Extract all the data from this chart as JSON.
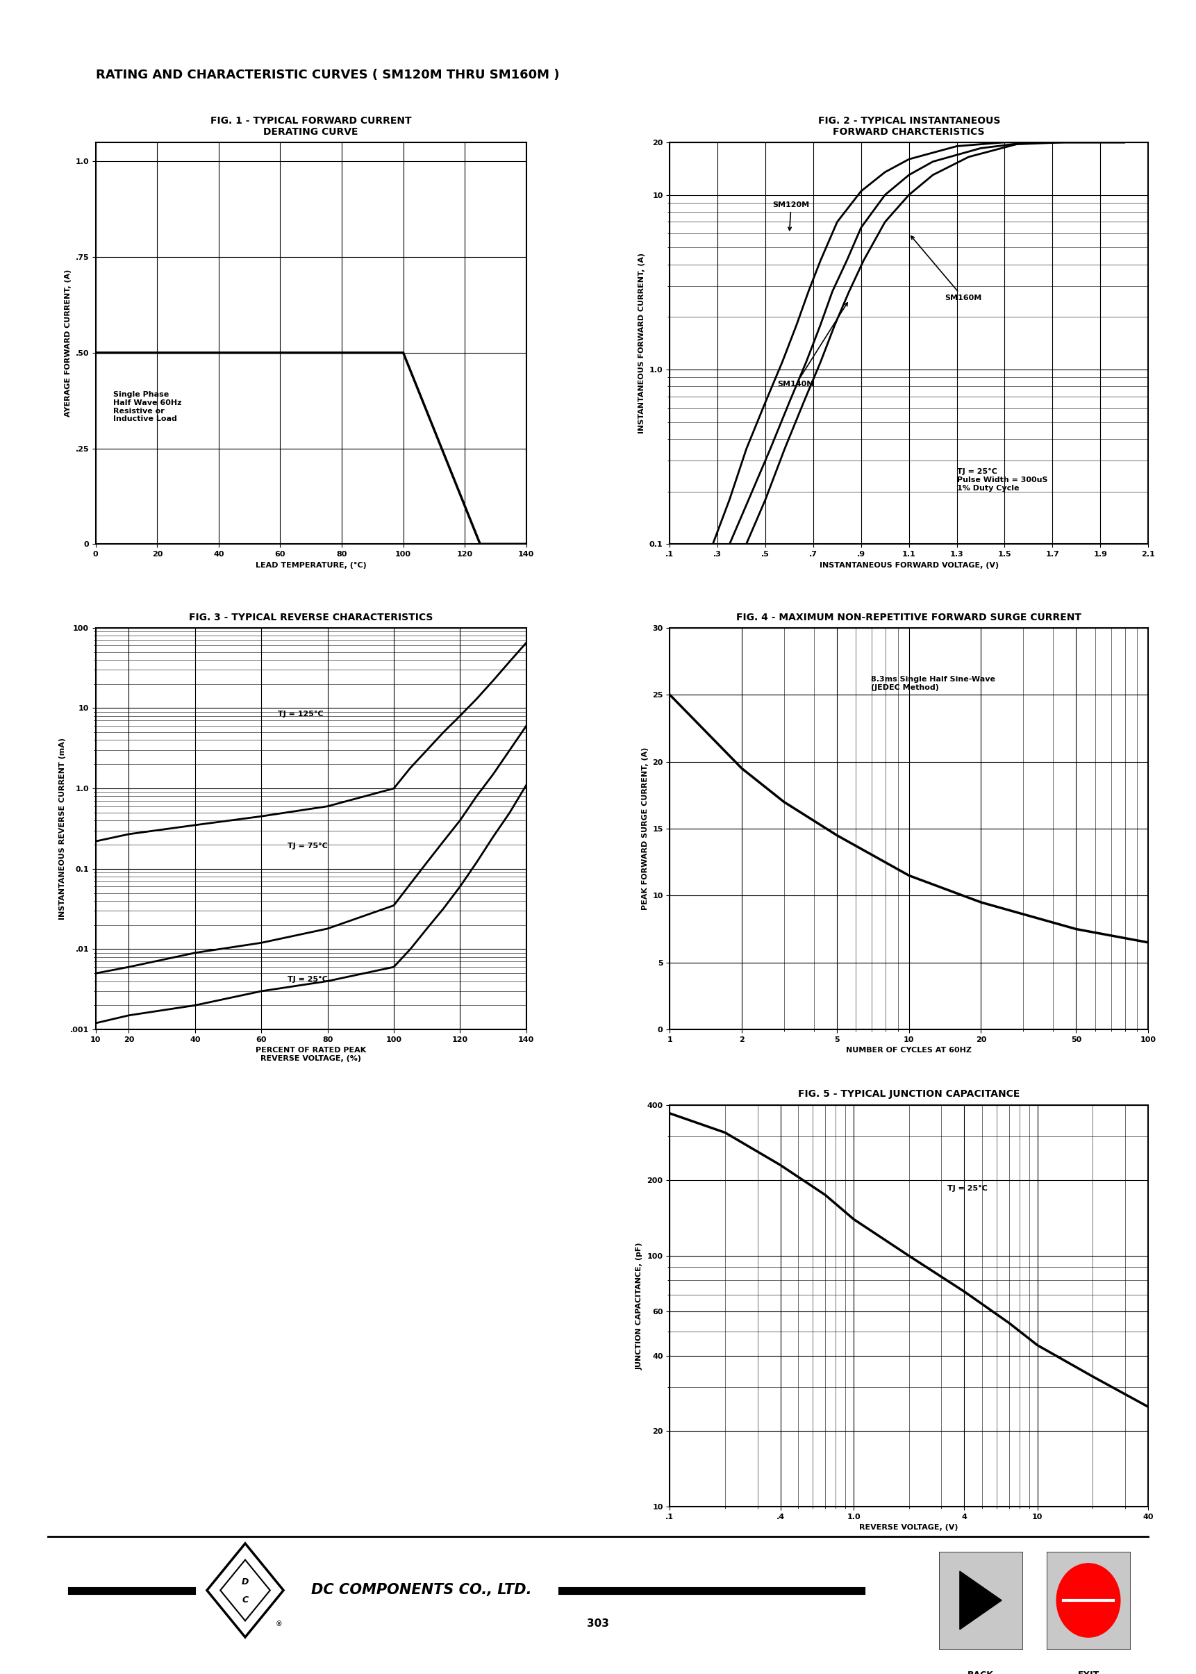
{
  "page_title": "RATING AND CHARACTERISTIC CURVES ( SM120M THRU SM160M )",
  "fig1_title": "FIG. 1 - TYPICAL FORWARD CURRENT\nDERATING CURVE",
  "fig1_xlabel": "LEAD TEMPERATURE, (°C)",
  "fig1_ylabel": "AYERAGE FORWARD CURRENT, (A)",
  "fig1_yticks": [
    0,
    0.25,
    0.5,
    0.75,
    1.0
  ],
  "fig1_ytick_labels": [
    "0",
    ".25",
    ".50",
    ".75",
    "1.0"
  ],
  "fig1_xticks": [
    0,
    20,
    40,
    60,
    80,
    100,
    120,
    140
  ],
  "fig1_xlim": [
    0,
    140
  ],
  "fig1_ylim": [
    0,
    1.05
  ],
  "fig1_curve_x": [
    0,
    100,
    125,
    140
  ],
  "fig1_curve_y": [
    0.5,
    0.5,
    0.0,
    0.0
  ],
  "fig1_annotation": "Single Phase\nHalf Wave 60Hz\nResistive or\nInductive Load",
  "fig2_title": "FIG. 2 - TYPICAL INSTANTANEOUS\nFORWARD CHARCTERISTICS",
  "fig2_xlabel": "INSTANTANEOUS FORWARD VOLTAGE, (V)",
  "fig2_ylabel": "INSTANTANEOUS FORWARD CURRENT, (A)",
  "fig2_xlim": [
    0.1,
    2.1
  ],
  "fig2_ylim": [
    0.1,
    20
  ],
  "fig2_xticks": [
    0.1,
    0.3,
    0.5,
    0.7,
    0.9,
    1.1,
    1.3,
    1.5,
    1.7,
    1.9,
    2.1
  ],
  "fig2_xtick_labels": [
    ".1",
    ".3",
    ".5",
    ".7",
    ".9",
    "1.1",
    "1.3",
    "1.5",
    "1.7",
    "1.9",
    "2.1"
  ],
  "fig2_ytick_labels": [
    "0.1",
    "1.0",
    "10",
    "20"
  ],
  "fig2_curve1_x": [
    0.28,
    0.35,
    0.42,
    0.5,
    0.57,
    0.63,
    0.68,
    0.73,
    0.8,
    0.9,
    1.0,
    1.1,
    1.3,
    1.5,
    1.7,
    2.0
  ],
  "fig2_curve1_y": [
    0.1,
    0.18,
    0.35,
    0.65,
    1.1,
    1.8,
    2.8,
    4.2,
    7.0,
    10.5,
    13.5,
    16.0,
    19.0,
    20.0,
    20.0,
    20.0
  ],
  "fig2_curve2_x": [
    0.35,
    0.43,
    0.52,
    0.6,
    0.67,
    0.73,
    0.78,
    0.84,
    0.9,
    1.0,
    1.1,
    1.2,
    1.4,
    1.6,
    1.8,
    2.0
  ],
  "fig2_curve2_y": [
    0.1,
    0.18,
    0.35,
    0.65,
    1.1,
    1.8,
    2.8,
    4.2,
    6.5,
    10.0,
    13.0,
    15.5,
    18.5,
    20.0,
    20.0,
    20.0
  ],
  "fig2_curve3_x": [
    0.42,
    0.5,
    0.58,
    0.66,
    0.73,
    0.79,
    0.85,
    0.91,
    1.0,
    1.1,
    1.2,
    1.35,
    1.55,
    1.75,
    2.0
  ],
  "fig2_curve3_y": [
    0.1,
    0.18,
    0.35,
    0.65,
    1.1,
    1.8,
    2.8,
    4.2,
    7.0,
    10.0,
    13.0,
    16.5,
    19.5,
    20.0,
    20.0
  ],
  "fig2_label1": "SM120M",
  "fig2_label2": "SM160M",
  "fig2_label3": "SM140M",
  "fig2_annotation": "TJ = 25°C\nPulse Width = 300uS\n1% Duty Cycle",
  "fig3_title": "FIG. 3 - TYPICAL REVERSE CHARACTERISTICS",
  "fig3_xlabel": "PERCENT OF RATED PEAK\nREVERSE VOLTAGE, (%)",
  "fig3_ylabel": "INSTANTANEOUS REVERSE CURRENT (mA)",
  "fig3_xlim": [
    10,
    140
  ],
  "fig3_ylim_log": [
    0.001,
    100
  ],
  "fig3_xticks": [
    10,
    20,
    40,
    60,
    80,
    100,
    120,
    140
  ],
  "fig3_yticks": [
    0.001,
    0.01,
    0.1,
    1.0,
    10,
    100
  ],
  "fig3_ytick_labels": [
    ".001",
    ".01",
    "0.1",
    "1.0",
    "10",
    "100"
  ],
  "fig3_curve1_x": [
    10,
    20,
    40,
    60,
    80,
    100,
    105,
    110,
    115,
    120,
    125,
    130,
    135,
    140
  ],
  "fig3_curve1_y": [
    0.22,
    0.27,
    0.35,
    0.45,
    0.6,
    1.0,
    1.8,
    3.0,
    5.0,
    8.0,
    13.0,
    22.0,
    38.0,
    65.0
  ],
  "fig3_curve2_x": [
    10,
    20,
    40,
    60,
    80,
    100,
    105,
    110,
    115,
    120,
    125,
    130,
    135,
    140
  ],
  "fig3_curve2_y": [
    0.005,
    0.006,
    0.009,
    0.012,
    0.018,
    0.035,
    0.065,
    0.12,
    0.22,
    0.4,
    0.8,
    1.5,
    3.0,
    6.0
  ],
  "fig3_curve3_x": [
    10,
    20,
    40,
    60,
    80,
    100,
    105,
    110,
    115,
    120,
    125,
    130,
    135,
    140
  ],
  "fig3_curve3_y": [
    0.0012,
    0.0015,
    0.002,
    0.003,
    0.004,
    0.006,
    0.01,
    0.018,
    0.032,
    0.06,
    0.12,
    0.25,
    0.5,
    1.1
  ],
  "fig3_label1": "TJ = 125°C",
  "fig3_label2": "TJ = 75°C",
  "fig3_label3": "TJ = 25°C",
  "fig4_title": "FIG. 4 - MAXIMUM NON-REPETITIVE FORWARD SURGE CURRENT",
  "fig4_xlabel": "NUMBER OF CYCLES AT 60HZ",
  "fig4_ylabel": "PEAK FORWARD SURGE CURRENT, (A)",
  "fig4_xlim": [
    1,
    100
  ],
  "fig4_ylim": [
    0,
    30
  ],
  "fig4_yticks": [
    0,
    5,
    10,
    15,
    20,
    25,
    30
  ],
  "fig4_xticks": [
    1,
    2,
    5,
    10,
    20,
    50,
    100
  ],
  "fig4_curve_x": [
    1,
    2,
    3,
    5,
    10,
    20,
    50,
    100
  ],
  "fig4_curve_y": [
    25.0,
    19.5,
    17.0,
    14.5,
    11.5,
    9.5,
    7.5,
    6.5
  ],
  "fig4_annotation": "8.3ms Single Half Sine-Wave\n(JEDEC Method)",
  "fig5_title": "FIG. 5 - TYPICAL JUNCTION CAPACITANCE",
  "fig5_xlabel": "REVERSE VOLTAGE, (V)",
  "fig5_ylabel": "JUNCTION CAPACITANCE, (pF)",
  "fig5_xlim_log": [
    0.1,
    40
  ],
  "fig5_ylim_log": [
    10,
    400
  ],
  "fig5_xticks": [
    0.1,
    0.4,
    1.0,
    4,
    10,
    40
  ],
  "fig5_xtick_labels": [
    ".1",
    ".4",
    "1.0",
    "4",
    "10",
    "40"
  ],
  "fig5_yticks": [
    10,
    20,
    40,
    60,
    100,
    200,
    400
  ],
  "fig5_curve_x": [
    0.1,
    0.2,
    0.4,
    0.7,
    1.0,
    2.0,
    4.0,
    7.0,
    10.0,
    20.0,
    40.0
  ],
  "fig5_curve_y": [
    370,
    310,
    230,
    175,
    140,
    100,
    72,
    54,
    44,
    33,
    25
  ],
  "fig5_annotation": "TJ = 25°C",
  "footer_text": "DC COMPONENTS CO., LTD.",
  "page_number": "303",
  "bg_color": "#ffffff",
  "line_color": "#000000",
  "grid_color": "#000000",
  "title_fontsize": 10,
  "axis_title_fontsize": 9,
  "label_fontsize": 8,
  "tick_fontsize": 8
}
